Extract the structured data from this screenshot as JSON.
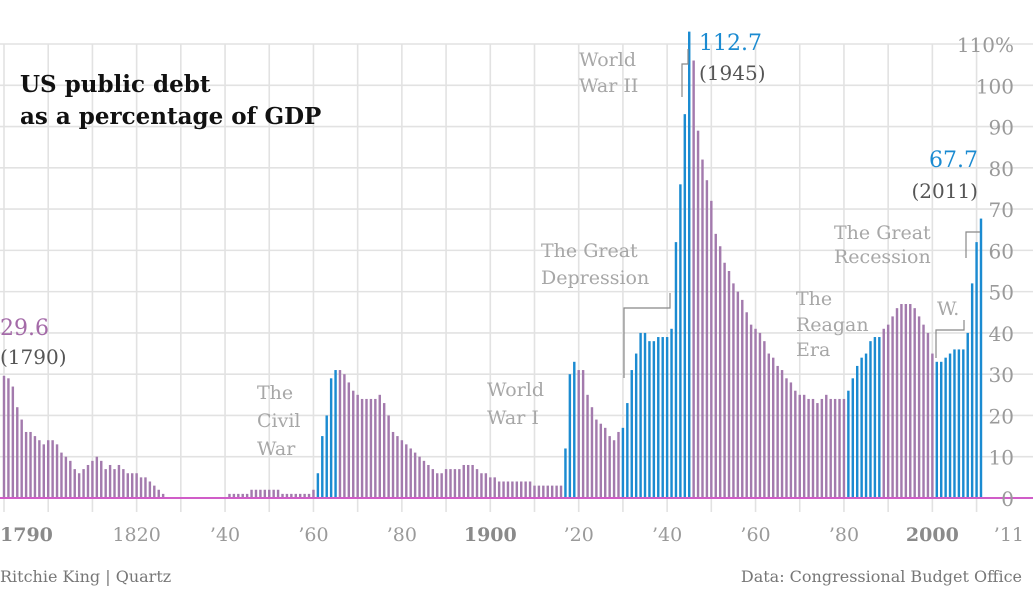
{
  "colors": {
    "peace": "#a37aad",
    "war": "#1b8bd1",
    "baseline": "#d05dc8",
    "grid": "#e2e2e2",
    "bracket": "#888888"
  },
  "title": [
    "US public debt",
    "as a percentage of GDP"
  ],
  "source": "Ritchie King | Quartz",
  "credit": "Data: Congressional Budget Office",
  "callouts": {
    "start": {
      "value": "29.6",
      "year": "(1790)"
    },
    "peak": {
      "value": "112.7",
      "year": "(1945)"
    },
    "end": {
      "value": "67.7",
      "year": "(2011)"
    }
  },
  "events": [
    {
      "key": "civil",
      "lines": [
        "The",
        "Civil",
        "War"
      ]
    },
    {
      "key": "ww1",
      "lines": [
        "World",
        "War I"
      ]
    },
    {
      "key": "depression",
      "lines": [
        "The Great",
        "Depression"
      ]
    },
    {
      "key": "ww2",
      "lines": [
        "World",
        "War II"
      ]
    },
    {
      "key": "reagan",
      "lines": [
        "The",
        "Reagan",
        "Era"
      ]
    },
    {
      "key": "w",
      "lines": [
        "W."
      ]
    },
    {
      "key": "recession",
      "lines": [
        "The Great",
        "Recession"
      ]
    }
  ],
  "chart_data": {
    "type": "bar",
    "title": "US public debt as a percentage of GDP",
    "xlim": [
      1790,
      2011
    ],
    "ylim": [
      0,
      110
    ],
    "y_ticks": [
      0,
      10,
      20,
      30,
      40,
      50,
      60,
      70,
      80,
      90,
      100,
      110
    ],
    "y_tick_labels": [
      "0",
      "10",
      "20",
      "30",
      "40",
      "50",
      "60",
      "70",
      "80",
      "90",
      "100",
      "110%"
    ],
    "x_ticks": [
      1790,
      1820,
      1840,
      1860,
      1880,
      1900,
      1920,
      1940,
      1960,
      1980,
      2000,
      2011
    ],
    "x_tick_labels": [
      "1790",
      "1820",
      "’40",
      "’60",
      "’80",
      "1900",
      "’20",
      "’40",
      "’60",
      "’80",
      "2000",
      "’11"
    ],
    "x_tick_bold": [
      true,
      false,
      false,
      false,
      false,
      true,
      false,
      false,
      false,
      false,
      true,
      false
    ],
    "grid": true,
    "series": [
      {
        "name": "peace",
        "color": "#a37aad"
      },
      {
        "name": "war",
        "color": "#1b8bd1"
      }
    ],
    "shaded_periods": [
      [
        1861,
        1865
      ],
      [
        1917,
        1919
      ],
      [
        1930,
        1940
      ],
      [
        1941,
        1945
      ],
      [
        1981,
        1988
      ],
      [
        2001,
        2008
      ],
      [
        2008,
        2011
      ]
    ],
    "x": [
      1790,
      1791,
      1792,
      1793,
      1794,
      1795,
      1796,
      1797,
      1798,
      1799,
      1800,
      1801,
      1802,
      1803,
      1804,
      1805,
      1806,
      1807,
      1808,
      1809,
      1810,
      1811,
      1812,
      1813,
      1814,
      1815,
      1816,
      1817,
      1818,
      1819,
      1820,
      1821,
      1822,
      1823,
      1824,
      1825,
      1826,
      1827,
      1828,
      1829,
      1830,
      1831,
      1832,
      1833,
      1834,
      1835,
      1836,
      1837,
      1838,
      1839,
      1840,
      1841,
      1842,
      1843,
      1844,
      1845,
      1846,
      1847,
      1848,
      1849,
      1850,
      1851,
      1852,
      1853,
      1854,
      1855,
      1856,
      1857,
      1858,
      1859,
      1860,
      1861,
      1862,
      1863,
      1864,
      1865,
      1866,
      1867,
      1868,
      1869,
      1870,
      1871,
      1872,
      1873,
      1874,
      1875,
      1876,
      1877,
      1878,
      1879,
      1880,
      1881,
      1882,
      1883,
      1884,
      1885,
      1886,
      1887,
      1888,
      1889,
      1890,
      1891,
      1892,
      1893,
      1894,
      1895,
      1896,
      1897,
      1898,
      1899,
      1900,
      1901,
      1902,
      1903,
      1904,
      1905,
      1906,
      1907,
      1908,
      1909,
      1910,
      1911,
      1912,
      1913,
      1914,
      1915,
      1916,
      1917,
      1918,
      1919,
      1920,
      1921,
      1922,
      1923,
      1924,
      1925,
      1926,
      1927,
      1928,
      1929,
      1930,
      1931,
      1932,
      1933,
      1934,
      1935,
      1936,
      1937,
      1938,
      1939,
      1940,
      1941,
      1942,
      1943,
      1944,
      1945,
      1946,
      1947,
      1948,
      1949,
      1950,
      1951,
      1952,
      1953,
      1954,
      1955,
      1956,
      1957,
      1958,
      1959,
      1960,
      1961,
      1962,
      1963,
      1964,
      1965,
      1966,
      1967,
      1968,
      1969,
      1970,
      1971,
      1972,
      1973,
      1974,
      1975,
      1976,
      1977,
      1978,
      1979,
      1980,
      1981,
      1982,
      1983,
      1984,
      1985,
      1986,
      1987,
      1988,
      1989,
      1990,
      1991,
      1992,
      1993,
      1994,
      1995,
      1996,
      1997,
      1998,
      1999,
      2000,
      2001,
      2002,
      2003,
      2004,
      2005,
      2006,
      2007,
      2008,
      2009,
      2010,
      2011
    ],
    "values": [
      29.6,
      29,
      27,
      22,
      19,
      16,
      16,
      15,
      14,
      13,
      14,
      14,
      13,
      11,
      10,
      9,
      7,
      6,
      7,
      8,
      9,
      10,
      9,
      7,
      8,
      7,
      8,
      7,
      6,
      6,
      6,
      5,
      5,
      4,
      3,
      2,
      1,
      0,
      0,
      0,
      0,
      0,
      0,
      0,
      0,
      0,
      0,
      0,
      0,
      0,
      0,
      1,
      1,
      1,
      1,
      1,
      2,
      2,
      2,
      2,
      2,
      2,
      2,
      1,
      1,
      1,
      1,
      1,
      1,
      1,
      2,
      6,
      15,
      20,
      29,
      31,
      31,
      30,
      28,
      26,
      25,
      24,
      24,
      24,
      24,
      25,
      23,
      20,
      16,
      15,
      14,
      13,
      12,
      11,
      10,
      9,
      8,
      7,
      6,
      6,
      7,
      7,
      7,
      7,
      8,
      8,
      8,
      7,
      6,
      6,
      5,
      5,
      4,
      4,
      4,
      4,
      4,
      4,
      4,
      4,
      3,
      3,
      3,
      3,
      3,
      3,
      3,
      12,
      30,
      33,
      31,
      31,
      25,
      22,
      19,
      18,
      17,
      15,
      14,
      16,
      17,
      23,
      31,
      35,
      40,
      40,
      38,
      38,
      39,
      39,
      39,
      41,
      62,
      76,
      93,
      113,
      106,
      89,
      82,
      77,
      72,
      64,
      61,
      57,
      55,
      52,
      50,
      48,
      45,
      42,
      41,
      40,
      38,
      35,
      34,
      32,
      31,
      29,
      28,
      26,
      25,
      25,
      24,
      24,
      23,
      24,
      25,
      24,
      24,
      24,
      24,
      26,
      29,
      32,
      34,
      35,
      38,
      39,
      39,
      41,
      42,
      44,
      46,
      47,
      47,
      47,
      46,
      44,
      42,
      40,
      35,
      33,
      33,
      34,
      35,
      36,
      36,
      36,
      40,
      52,
      62,
      67.7
    ]
  }
}
